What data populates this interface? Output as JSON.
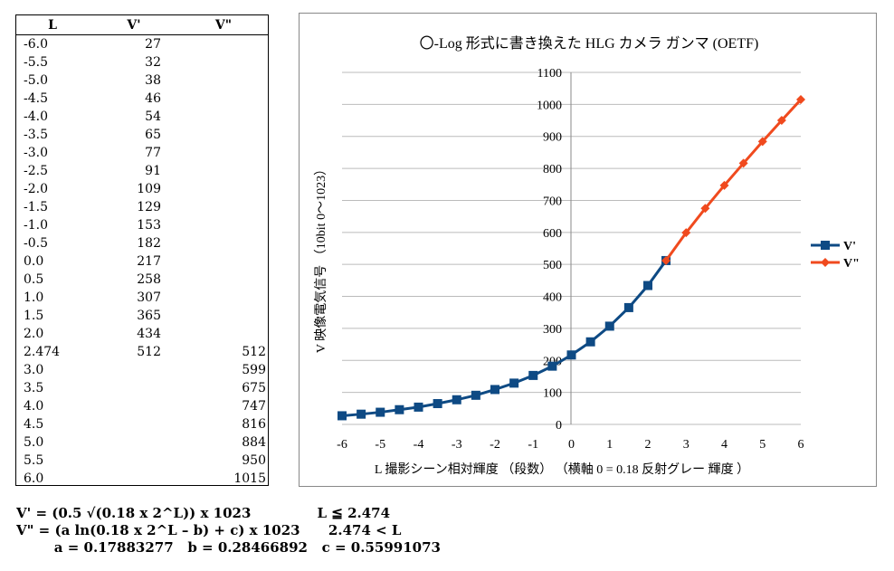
{
  "table": {
    "headers": [
      "L",
      "V'",
      "V\""
    ],
    "rows": [
      [
        "-6.0",
        "27",
        ""
      ],
      [
        "-5.5",
        "32",
        ""
      ],
      [
        "-5.0",
        "38",
        ""
      ],
      [
        "-4.5",
        "46",
        ""
      ],
      [
        "-4.0",
        "54",
        ""
      ],
      [
        "-3.5",
        "65",
        ""
      ],
      [
        "-3.0",
        "77",
        ""
      ],
      [
        "-2.5",
        "91",
        ""
      ],
      [
        "-2.0",
        "109",
        ""
      ],
      [
        "-1.5",
        "129",
        ""
      ],
      [
        "-1.0",
        "153",
        ""
      ],
      [
        "-0.5",
        "182",
        ""
      ],
      [
        "0.0",
        "217",
        ""
      ],
      [
        "0.5",
        "258",
        ""
      ],
      [
        "1.0",
        "307",
        ""
      ],
      [
        "1.5",
        "365",
        ""
      ],
      [
        "2.0",
        "434",
        ""
      ],
      [
        "2.474",
        "512",
        "512"
      ],
      [
        "3.0",
        "",
        "599"
      ],
      [
        "3.5",
        "",
        "675"
      ],
      [
        "4.0",
        "",
        "747"
      ],
      [
        "4.5",
        "",
        "816"
      ],
      [
        "5.0",
        "",
        "884"
      ],
      [
        "5.5",
        "",
        "950"
      ],
      [
        "6.0",
        "",
        "1015"
      ]
    ]
  },
  "chart_data": {
    "type": "line",
    "title": "〇-Log 形式に書き換えた HLG カメラ ガンマ  (OETF)",
    "xlabel": "L 撮影シーン相対輝度 （段数）  （横軸  0 = 0.18 反射グレー 輝度 ）",
    "ylabel": "V 映像電気信号 （10bit  0～1023）",
    "xlim": [
      -6,
      6
    ],
    "ylim": [
      0,
      1100
    ],
    "xticks": [
      "-6",
      "-5",
      "-4",
      "-3",
      "-2",
      "-1",
      "0",
      "1",
      "2",
      "3",
      "4",
      "5",
      "6"
    ],
    "yticks": [
      "0",
      "100",
      "200",
      "300",
      "400",
      "500",
      "600",
      "700",
      "800",
      "900",
      "1000",
      "1100"
    ],
    "grid": "horizontal",
    "legend": "right",
    "series": [
      {
        "name": "V'",
        "color": "#0e4a84",
        "marker": "square",
        "x": [
          -6,
          -5.5,
          -5,
          -4.5,
          -4,
          -3.5,
          -3,
          -2.5,
          -2,
          -1.5,
          -1,
          -0.5,
          0,
          0.5,
          1,
          1.5,
          2,
          2.474
        ],
        "y": [
          27,
          32,
          38,
          46,
          54,
          65,
          77,
          91,
          109,
          129,
          153,
          182,
          217,
          258,
          307,
          365,
          434,
          512
        ]
      },
      {
        "name": "V\"",
        "color": "#f04a1e",
        "marker": "diamond",
        "x": [
          2.474,
          3,
          3.5,
          4,
          4.5,
          5,
          5.5,
          6
        ],
        "y": [
          512,
          599,
          675,
          747,
          816,
          884,
          950,
          1015
        ]
      }
    ]
  },
  "formulas": [
    "V' = (0.5 √(0.18 x 2^L)) x 1023              L ≦ 2.474",
    "V\" = (a ln(0.18 x 2^L – b) + c) x 1023      2.474 < L",
    "        a = 0.17883277   b = 0.28466892   c = 0.55991073"
  ]
}
